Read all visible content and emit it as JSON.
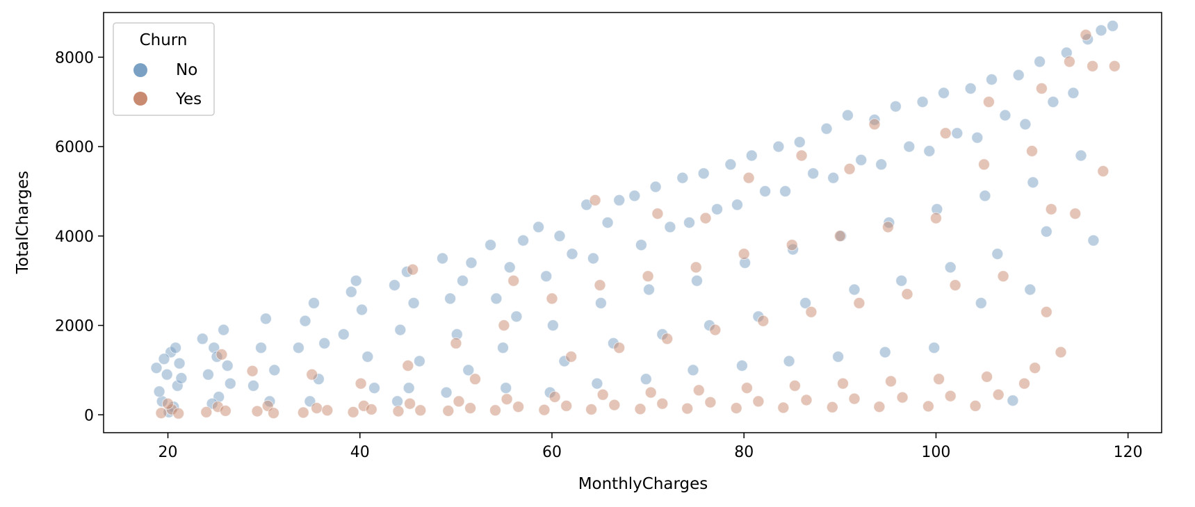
{
  "chart_data": {
    "type": "scatter",
    "xlabel": "MonthlyCharges",
    "ylabel": "TotalCharges",
    "xlim": [
      13.3,
      123.5
    ],
    "ylim": [
      -400,
      9000
    ],
    "xticks": [
      20,
      40,
      60,
      80,
      100,
      120
    ],
    "yticks": [
      0,
      2000,
      4000,
      6000,
      8000
    ],
    "legend": {
      "title": "Churn",
      "placement": "top-left"
    },
    "series": [
      {
        "name": "No",
        "color": "#7aa0c4",
        "points": [
          [
            18.8,
            1050
          ],
          [
            19.4,
            300
          ],
          [
            19.9,
            900
          ],
          [
            20.3,
            1400
          ],
          [
            20.6,
            180
          ],
          [
            21.0,
            650
          ],
          [
            21.2,
            1150
          ],
          [
            19.1,
            520
          ],
          [
            20.1,
            60
          ],
          [
            20.8,
            1500
          ],
          [
            21.4,
            820
          ],
          [
            19.6,
            1250
          ],
          [
            23.6,
            1700
          ],
          [
            24.2,
            900
          ],
          [
            24.8,
            1500
          ],
          [
            25.3,
            400
          ],
          [
            25.8,
            1900
          ],
          [
            26.2,
            1100
          ],
          [
            24.6,
            250
          ],
          [
            25.1,
            1300
          ],
          [
            26.5,
            700
          ],
          [
            28.9,
            650
          ],
          [
            29.7,
            1500
          ],
          [
            30.2,
            2150
          ],
          [
            30.6,
            300
          ],
          [
            31.1,
            1000
          ],
          [
            33.6,
            1500
          ],
          [
            34.3,
            2100
          ],
          [
            35.2,
            2500
          ],
          [
            35.7,
            800
          ],
          [
            36.3,
            1600
          ],
          [
            34.8,
            300
          ],
          [
            38.3,
            1800
          ],
          [
            39.1,
            2750
          ],
          [
            40.2,
            2350
          ],
          [
            40.8,
            1300
          ],
          [
            41.5,
            600
          ],
          [
            39.6,
            3000
          ],
          [
            43.6,
            2900
          ],
          [
            44.2,
            1900
          ],
          [
            44.9,
            3200
          ],
          [
            45.6,
            2500
          ],
          [
            46.2,
            1200
          ],
          [
            45.1,
            600
          ],
          [
            43.9,
            300
          ],
          [
            48.6,
            3500
          ],
          [
            49.4,
            2600
          ],
          [
            50.1,
            1800
          ],
          [
            50.7,
            3000
          ],
          [
            51.3,
            1000
          ],
          [
            49.0,
            500
          ],
          [
            51.6,
            3400
          ],
          [
            53.6,
            3800
          ],
          [
            54.2,
            2600
          ],
          [
            54.9,
            1500
          ],
          [
            55.6,
            3300
          ],
          [
            56.3,
            2200
          ],
          [
            55.2,
            600
          ],
          [
            57.0,
            3900
          ],
          [
            58.6,
            4200
          ],
          [
            59.4,
            3100
          ],
          [
            60.1,
            2000
          ],
          [
            60.8,
            4000
          ],
          [
            61.3,
            1200
          ],
          [
            59.8,
            500
          ],
          [
            62.1,
            3600
          ],
          [
            63.6,
            4700
          ],
          [
            64.3,
            3500
          ],
          [
            65.1,
            2500
          ],
          [
            65.8,
            4300
          ],
          [
            66.4,
            1600
          ],
          [
            64.7,
            700
          ],
          [
            67.0,
            4800
          ],
          [
            68.6,
            4900
          ],
          [
            69.3,
            3800
          ],
          [
            70.1,
            2800
          ],
          [
            70.8,
            5100
          ],
          [
            71.5,
            1800
          ],
          [
            69.8,
            800
          ],
          [
            72.3,
            4200
          ],
          [
            73.6,
            5300
          ],
          [
            74.3,
            4300
          ],
          [
            75.1,
            3000
          ],
          [
            75.8,
            5400
          ],
          [
            76.4,
            2000
          ],
          [
            74.7,
            1000
          ],
          [
            77.2,
            4600
          ],
          [
            78.6,
            5600
          ],
          [
            79.3,
            4700
          ],
          [
            80.1,
            3400
          ],
          [
            80.8,
            5800
          ],
          [
            81.5,
            2200
          ],
          [
            79.8,
            1100
          ],
          [
            82.2,
            5000
          ],
          [
            83.6,
            6000
          ],
          [
            84.3,
            5000
          ],
          [
            85.1,
            3700
          ],
          [
            85.8,
            6100
          ],
          [
            86.4,
            2500
          ],
          [
            84.7,
            1200
          ],
          [
            87.2,
            5400
          ],
          [
            88.6,
            6400
          ],
          [
            89.3,
            5300
          ],
          [
            90.1,
            4000
          ],
          [
            90.8,
            6700
          ],
          [
            91.5,
            2800
          ],
          [
            89.8,
            1300
          ],
          [
            92.2,
            5700
          ],
          [
            93.6,
            6600
          ],
          [
            94.3,
            5600
          ],
          [
            95.1,
            4300
          ],
          [
            95.8,
            6900
          ],
          [
            96.4,
            3000
          ],
          [
            94.7,
            1400
          ],
          [
            97.2,
            6000
          ],
          [
            98.6,
            7000
          ],
          [
            99.3,
            5900
          ],
          [
            100.1,
            4600
          ],
          [
            100.8,
            7200
          ],
          [
            101.5,
            3300
          ],
          [
            99.8,
            1500
          ],
          [
            102.2,
            6300
          ],
          [
            103.6,
            7300
          ],
          [
            104.3,
            6200
          ],
          [
            105.1,
            4900
          ],
          [
            105.8,
            7500
          ],
          [
            106.4,
            3600
          ],
          [
            104.7,
            2500
          ],
          [
            107.2,
            6700
          ],
          [
            108.6,
            7600
          ],
          [
            109.3,
            6500
          ],
          [
            110.1,
            5200
          ],
          [
            110.8,
            7900
          ],
          [
            111.5,
            4100
          ],
          [
            109.8,
            2800
          ],
          [
            112.2,
            7000
          ],
          [
            113.6,
            8100
          ],
          [
            114.3,
            7200
          ],
          [
            115.1,
            5800
          ],
          [
            115.8,
            8400
          ],
          [
            116.4,
            3900
          ],
          [
            117.2,
            8600
          ],
          [
            118.4,
            8700
          ],
          [
            108.0,
            320
          ]
        ]
      },
      {
        "name": "Yes",
        "color": "#c88a70",
        "points": [
          [
            19.3,
            40
          ],
          [
            20.4,
            120
          ],
          [
            21.1,
            30
          ],
          [
            20.0,
            250
          ],
          [
            24.0,
            60
          ],
          [
            25.2,
            180
          ],
          [
            26.0,
            90
          ],
          [
            25.6,
            1350
          ],
          [
            29.3,
            80
          ],
          [
            30.4,
            200
          ],
          [
            31.0,
            40
          ],
          [
            28.8,
            980
          ],
          [
            34.1,
            50
          ],
          [
            35.5,
            150
          ],
          [
            36.6,
            100
          ],
          [
            35.0,
            900
          ],
          [
            39.3,
            60
          ],
          [
            40.4,
            200
          ],
          [
            41.2,
            120
          ],
          [
            40.1,
            700
          ],
          [
            44.0,
            80
          ],
          [
            45.2,
            250
          ],
          [
            46.3,
            100
          ],
          [
            45.0,
            1100
          ],
          [
            45.5,
            3250
          ],
          [
            49.2,
            90
          ],
          [
            50.3,
            300
          ],
          [
            51.5,
            150
          ],
          [
            50.0,
            1600
          ],
          [
            52.0,
            800
          ],
          [
            54.1,
            100
          ],
          [
            55.3,
            350
          ],
          [
            56.5,
            180
          ],
          [
            55.0,
            2000
          ],
          [
            56.0,
            3000
          ],
          [
            59.2,
            110
          ],
          [
            60.3,
            400
          ],
          [
            61.5,
            200
          ],
          [
            60.0,
            2600
          ],
          [
            62.0,
            1300
          ],
          [
            64.1,
            120
          ],
          [
            65.3,
            450
          ],
          [
            66.5,
            220
          ],
          [
            65.0,
            2900
          ],
          [
            67.0,
            1500
          ],
          [
            64.5,
            4800
          ],
          [
            69.2,
            130
          ],
          [
            70.3,
            500
          ],
          [
            71.5,
            250
          ],
          [
            70.0,
            3100
          ],
          [
            72.0,
            1700
          ],
          [
            71.0,
            4500
          ],
          [
            74.1,
            140
          ],
          [
            75.3,
            550
          ],
          [
            76.5,
            280
          ],
          [
            75.0,
            3300
          ],
          [
            77.0,
            1900
          ],
          [
            76.0,
            4400
          ],
          [
            79.2,
            150
          ],
          [
            80.3,
            600
          ],
          [
            81.5,
            300
          ],
          [
            80.0,
            3600
          ],
          [
            82.0,
            2100
          ],
          [
            80.5,
            5300
          ],
          [
            84.1,
            160
          ],
          [
            85.3,
            650
          ],
          [
            86.5,
            330
          ],
          [
            85.0,
            3800
          ],
          [
            87.0,
            2300
          ],
          [
            86.0,
            5800
          ],
          [
            89.2,
            170
          ],
          [
            90.3,
            700
          ],
          [
            91.5,
            360
          ],
          [
            90.0,
            4000
          ],
          [
            92.0,
            2500
          ],
          [
            91.0,
            5500
          ],
          [
            94.1,
            180
          ],
          [
            95.3,
            750
          ],
          [
            96.5,
            390
          ],
          [
            95.0,
            4200
          ],
          [
            97.0,
            2700
          ],
          [
            93.6,
            6500
          ],
          [
            99.2,
            190
          ],
          [
            100.3,
            800
          ],
          [
            101.5,
            420
          ],
          [
            100.0,
            4400
          ],
          [
            102.0,
            2900
          ],
          [
            101.0,
            6300
          ],
          [
            104.1,
            200
          ],
          [
            105.3,
            850
          ],
          [
            106.5,
            450
          ],
          [
            105.0,
            5600
          ],
          [
            107.0,
            3100
          ],
          [
            105.5,
            7000
          ],
          [
            109.2,
            700
          ],
          [
            110.3,
            1050
          ],
          [
            111.5,
            2300
          ],
          [
            110.0,
            5900
          ],
          [
            112.0,
            4600
          ],
          [
            111.0,
            7300
          ],
          [
            113.0,
            1400
          ],
          [
            114.5,
            4500
          ],
          [
            115.6,
            8500
          ],
          [
            116.3,
            7800
          ],
          [
            117.4,
            5450
          ],
          [
            118.6,
            7800
          ],
          [
            113.9,
            7900
          ]
        ]
      }
    ]
  }
}
